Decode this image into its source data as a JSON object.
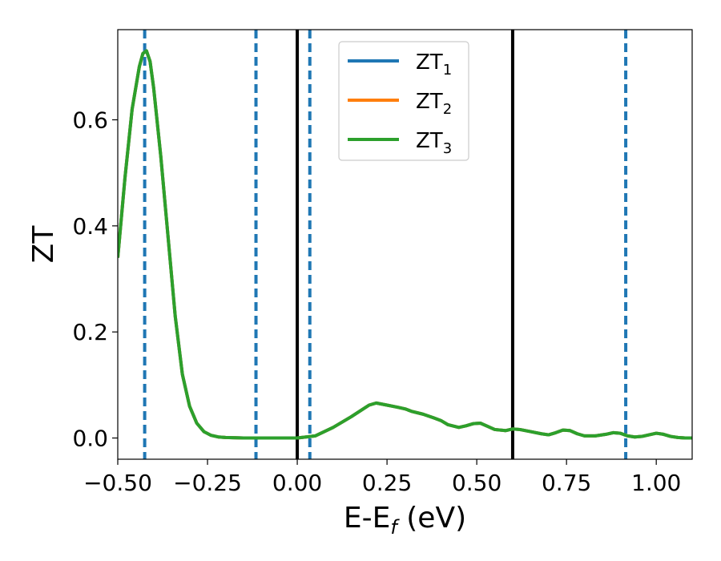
{
  "chart_data": {
    "type": "line",
    "xlabel": "E-E",
    "xlabel_sub": "f",
    "xlabel_unit": " (eV)",
    "ylabel": "ZT",
    "xlim": [
      -0.5,
      1.1
    ],
    "ylim": [
      -0.04,
      0.77
    ],
    "xticks": [
      -0.5,
      -0.25,
      0.0,
      0.25,
      0.5,
      0.75,
      1.0
    ],
    "xtick_labels": [
      "−0.50",
      "−0.25",
      "0.00",
      "0.25",
      "0.50",
      "0.75",
      "1.00"
    ],
    "yticks": [
      0.0,
      0.2,
      0.4,
      0.6
    ],
    "ytick_labels": [
      "0.0",
      "0.2",
      "0.4",
      "0.6"
    ],
    "grid": false,
    "legend_position": "top-center",
    "vlines_dashed": [
      -0.425,
      -0.115,
      0.035,
      0.915
    ],
    "vlines_solid": [
      0.0,
      0.6
    ],
    "vline_dashed_color": "#1f77b4",
    "vline_solid_color": "#000000",
    "series": [
      {
        "name": "ZT",
        "sub": "1",
        "color": "#1f77b4",
        "x": [
          -0.5,
          -0.48,
          -0.46,
          -0.44,
          -0.43,
          -0.42,
          -0.41,
          -0.4,
          -0.38,
          -0.36,
          -0.34,
          -0.32,
          -0.3,
          -0.28,
          -0.26,
          -0.24,
          -0.22,
          -0.2,
          -0.15,
          -0.1,
          -0.05,
          0.0,
          0.05,
          0.1,
          0.15,
          0.2,
          0.22,
          0.25,
          0.28,
          0.3,
          0.32,
          0.35,
          0.38,
          0.4,
          0.42,
          0.45,
          0.47,
          0.49,
          0.51,
          0.53,
          0.55,
          0.58,
          0.6,
          0.62,
          0.65,
          0.68,
          0.7,
          0.72,
          0.74,
          0.76,
          0.78,
          0.8,
          0.83,
          0.86,
          0.88,
          0.9,
          0.92,
          0.94,
          0.96,
          0.98,
          1.0,
          1.02,
          1.04,
          1.06,
          1.08,
          1.1
        ],
        "y": [
          0.34,
          0.49,
          0.62,
          0.7,
          0.725,
          0.73,
          0.71,
          0.66,
          0.53,
          0.38,
          0.23,
          0.12,
          0.06,
          0.028,
          0.012,
          0.005,
          0.002,
          0.001,
          0.0,
          0.0,
          0.0,
          0.0,
          0.004,
          0.02,
          0.04,
          0.062,
          0.066,
          0.062,
          0.058,
          0.055,
          0.05,
          0.045,
          0.038,
          0.033,
          0.025,
          0.02,
          0.023,
          0.027,
          0.028,
          0.022,
          0.016,
          0.014,
          0.017,
          0.016,
          0.012,
          0.008,
          0.006,
          0.01,
          0.015,
          0.014,
          0.008,
          0.004,
          0.004,
          0.007,
          0.01,
          0.009,
          0.004,
          0.002,
          0.003,
          0.006,
          0.009,
          0.007,
          0.003,
          0.001,
          0.0,
          0.0
        ]
      },
      {
        "name": "ZT",
        "sub": "2",
        "color": "#ff7f0e",
        "x": [
          -0.5,
          -0.48,
          -0.46,
          -0.44,
          -0.43,
          -0.42,
          -0.41,
          -0.4,
          -0.38,
          -0.36,
          -0.34,
          -0.32,
          -0.3,
          -0.28,
          -0.26,
          -0.24,
          -0.22,
          -0.2,
          -0.15,
          -0.1,
          -0.05,
          0.0,
          0.05,
          0.1,
          0.15,
          0.2,
          0.22,
          0.25,
          0.28,
          0.3,
          0.32,
          0.35,
          0.38,
          0.4,
          0.42,
          0.45,
          0.47,
          0.49,
          0.51,
          0.53,
          0.55,
          0.58,
          0.6,
          0.62,
          0.65,
          0.68,
          0.7,
          0.72,
          0.74,
          0.76,
          0.78,
          0.8,
          0.83,
          0.86,
          0.88,
          0.9,
          0.92,
          0.94,
          0.96,
          0.98,
          1.0,
          1.02,
          1.04,
          1.06,
          1.08,
          1.1
        ],
        "y": [
          0.34,
          0.49,
          0.62,
          0.7,
          0.725,
          0.73,
          0.71,
          0.66,
          0.53,
          0.38,
          0.23,
          0.12,
          0.06,
          0.028,
          0.012,
          0.005,
          0.002,
          0.001,
          0.0,
          0.0,
          0.0,
          0.0,
          0.004,
          0.02,
          0.04,
          0.062,
          0.066,
          0.062,
          0.058,
          0.055,
          0.05,
          0.045,
          0.038,
          0.033,
          0.025,
          0.02,
          0.023,
          0.027,
          0.028,
          0.022,
          0.016,
          0.014,
          0.017,
          0.016,
          0.012,
          0.008,
          0.006,
          0.01,
          0.015,
          0.014,
          0.008,
          0.004,
          0.004,
          0.007,
          0.01,
          0.009,
          0.004,
          0.002,
          0.003,
          0.006,
          0.009,
          0.007,
          0.003,
          0.001,
          0.0,
          0.0
        ]
      },
      {
        "name": "ZT",
        "sub": "3",
        "color": "#2ca02c",
        "x": [
          -0.5,
          -0.48,
          -0.46,
          -0.44,
          -0.43,
          -0.42,
          -0.41,
          -0.4,
          -0.38,
          -0.36,
          -0.34,
          -0.32,
          -0.3,
          -0.28,
          -0.26,
          -0.24,
          -0.22,
          -0.2,
          -0.15,
          -0.1,
          -0.05,
          0.0,
          0.05,
          0.1,
          0.15,
          0.2,
          0.22,
          0.25,
          0.28,
          0.3,
          0.32,
          0.35,
          0.38,
          0.4,
          0.42,
          0.45,
          0.47,
          0.49,
          0.51,
          0.53,
          0.55,
          0.58,
          0.6,
          0.62,
          0.65,
          0.68,
          0.7,
          0.72,
          0.74,
          0.76,
          0.78,
          0.8,
          0.83,
          0.86,
          0.88,
          0.9,
          0.92,
          0.94,
          0.96,
          0.98,
          1.0,
          1.02,
          1.04,
          1.06,
          1.08,
          1.1
        ],
        "y": [
          0.34,
          0.49,
          0.62,
          0.7,
          0.725,
          0.73,
          0.71,
          0.66,
          0.53,
          0.38,
          0.23,
          0.12,
          0.06,
          0.028,
          0.012,
          0.005,
          0.002,
          0.001,
          0.0,
          0.0,
          0.0,
          0.0,
          0.004,
          0.02,
          0.04,
          0.062,
          0.066,
          0.062,
          0.058,
          0.055,
          0.05,
          0.045,
          0.038,
          0.033,
          0.025,
          0.02,
          0.023,
          0.027,
          0.028,
          0.022,
          0.016,
          0.014,
          0.017,
          0.016,
          0.012,
          0.008,
          0.006,
          0.01,
          0.015,
          0.014,
          0.008,
          0.004,
          0.004,
          0.007,
          0.01,
          0.009,
          0.004,
          0.002,
          0.003,
          0.006,
          0.009,
          0.007,
          0.003,
          0.001,
          0.0,
          0.0
        ]
      }
    ]
  }
}
